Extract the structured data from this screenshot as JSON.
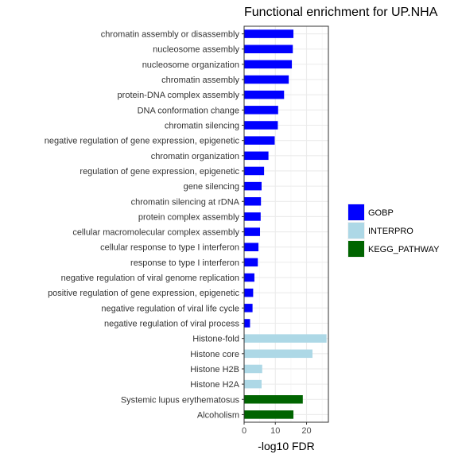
{
  "chart_data": {
    "type": "bar",
    "orientation": "horizontal",
    "title": "Functional enrichment for UP.NHA",
    "xlabel": "-log10 FDR",
    "ylabel": "",
    "xlim": [
      0,
      27
    ],
    "xticks": [
      0,
      10,
      20
    ],
    "grid": true,
    "legend_position": "right",
    "series": [
      {
        "name": "GOBP",
        "color": "#0000FF"
      },
      {
        "name": "INTERPRO",
        "color": "#ADD8E6"
      },
      {
        "name": "KEGG_PATHWAY",
        "color": "#006400"
      }
    ],
    "categories": [
      "chromatin assembly or disassembly",
      "nucleosome assembly",
      "nucleosome organization",
      "chromatin assembly",
      "protein-DNA complex assembly",
      "DNA conformation change",
      "chromatin silencing",
      "negative regulation of gene expression, epigenetic",
      "chromatin organization",
      "regulation of gene expression, epigenetic",
      "gene silencing",
      "chromatin silencing at rDNA",
      "protein complex assembly",
      "cellular macromolecular complex assembly",
      "cellular response to type I interferon",
      "response to type I interferon",
      "negative regulation of viral genome replication",
      "positive regulation of gene expression, epigenetic",
      "negative regulation of viral life cycle",
      "negative regulation of viral process",
      "Histone-fold",
      "Histone core",
      "Histone H2B",
      "Histone H2A",
      "Systemic lupus erythematosus",
      "Alcoholism"
    ],
    "values": [
      15.8,
      15.6,
      15.3,
      14.3,
      12.8,
      10.9,
      10.8,
      9.8,
      7.8,
      6.4,
      5.6,
      5.4,
      5.3,
      5.1,
      4.6,
      4.4,
      3.3,
      2.9,
      2.7,
      1.9,
      26.4,
      21.9,
      5.8,
      5.6,
      18.8,
      15.8
    ],
    "groups": [
      "GOBP",
      "GOBP",
      "GOBP",
      "GOBP",
      "GOBP",
      "GOBP",
      "GOBP",
      "GOBP",
      "GOBP",
      "GOBP",
      "GOBP",
      "GOBP",
      "GOBP",
      "GOBP",
      "GOBP",
      "GOBP",
      "GOBP",
      "GOBP",
      "GOBP",
      "GOBP",
      "INTERPRO",
      "INTERPRO",
      "INTERPRO",
      "INTERPRO",
      "KEGG_PATHWAY",
      "KEGG_PATHWAY"
    ]
  }
}
